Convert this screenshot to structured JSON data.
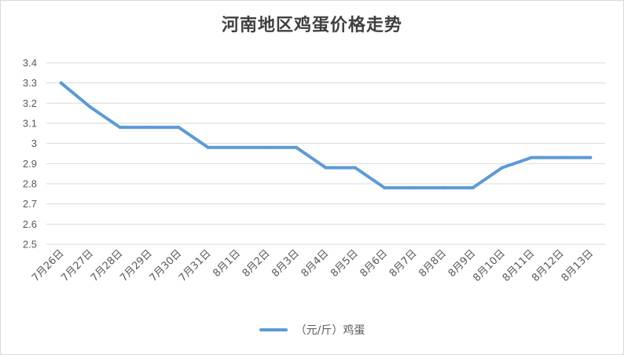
{
  "title": "河南地区鸡蛋价格走势",
  "legend": {
    "label": "（元/斤）鸡蛋"
  },
  "colors": {
    "series": "#5b9bd5",
    "grid": "#d9d9d9",
    "axis_text": "#595959",
    "title": "#404040"
  },
  "chart_data": {
    "type": "line",
    "title": "河南地区鸡蛋价格走势",
    "xlabel": "",
    "ylabel": "",
    "ylim": [
      2.5,
      3.4
    ],
    "yticks": [
      "2.5",
      "2.6",
      "2.7",
      "2.8",
      "2.9",
      "3",
      "3.1",
      "3.2",
      "3.3",
      "3.4"
    ],
    "grid": true,
    "legend_position": "bottom",
    "categories": [
      "7月26日",
      "7月27日",
      "7月28日",
      "7月29日",
      "7月30日",
      "7月31日",
      "8月1日",
      "8月2日",
      "8月3日",
      "8月4日",
      "8月5日",
      "8月6日",
      "8月7日",
      "8月8日",
      "8月9日",
      "8月10日",
      "8月11日",
      "8月12日",
      "8月13日"
    ],
    "series": [
      {
        "name": "（元/斤）鸡蛋",
        "values": [
          3.3,
          3.18,
          3.08,
          3.08,
          3.08,
          2.98,
          2.98,
          2.98,
          2.98,
          2.88,
          2.88,
          2.78,
          2.78,
          2.78,
          2.78,
          2.88,
          2.93,
          2.93,
          2.93
        ]
      }
    ]
  }
}
